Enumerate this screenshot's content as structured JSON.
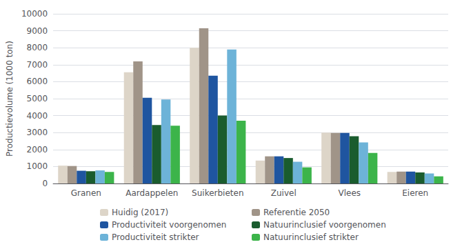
{
  "chart_data": {
    "type": "bar",
    "ylabel": "Productievolume (1000 ton)",
    "categories": [
      "Granen",
      "Aardappelen",
      "Suikerbieten",
      "Zuivel",
      "Vlees",
      "Eieren"
    ],
    "series": [
      {
        "name": "Huidig (2017)",
        "color": "#ddd5c8",
        "values": [
          1050,
          6550,
          8000,
          1350,
          3000,
          680
        ]
      },
      {
        "name": "Referentie 2050",
        "color": "#a09488",
        "values": [
          1030,
          7200,
          9150,
          1600,
          2980,
          700
        ]
      },
      {
        "name": "Productiviteit voorgenomen",
        "color": "#1f55a0",
        "values": [
          750,
          5050,
          6350,
          1600,
          2980,
          700
        ]
      },
      {
        "name": "Natuurinclusief voorgenomen",
        "color": "#1a5c2e",
        "values": [
          720,
          3450,
          4000,
          1500,
          2780,
          650
        ]
      },
      {
        "name": "Productiviteit strikter",
        "color": "#6db3d8",
        "values": [
          770,
          4950,
          7900,
          1280,
          2420,
          590
        ]
      },
      {
        "name": "Natuurinclusief strikter",
        "color": "#3cb44a",
        "values": [
          680,
          3400,
          3700,
          950,
          1800,
          420
        ]
      }
    ],
    "ylim": [
      0,
      10000
    ],
    "yticks": [
      0,
      1000,
      2000,
      3000,
      4000,
      5000,
      6000,
      7000,
      8000,
      9000,
      10000
    ],
    "grid": true,
    "legend": "bottom"
  }
}
